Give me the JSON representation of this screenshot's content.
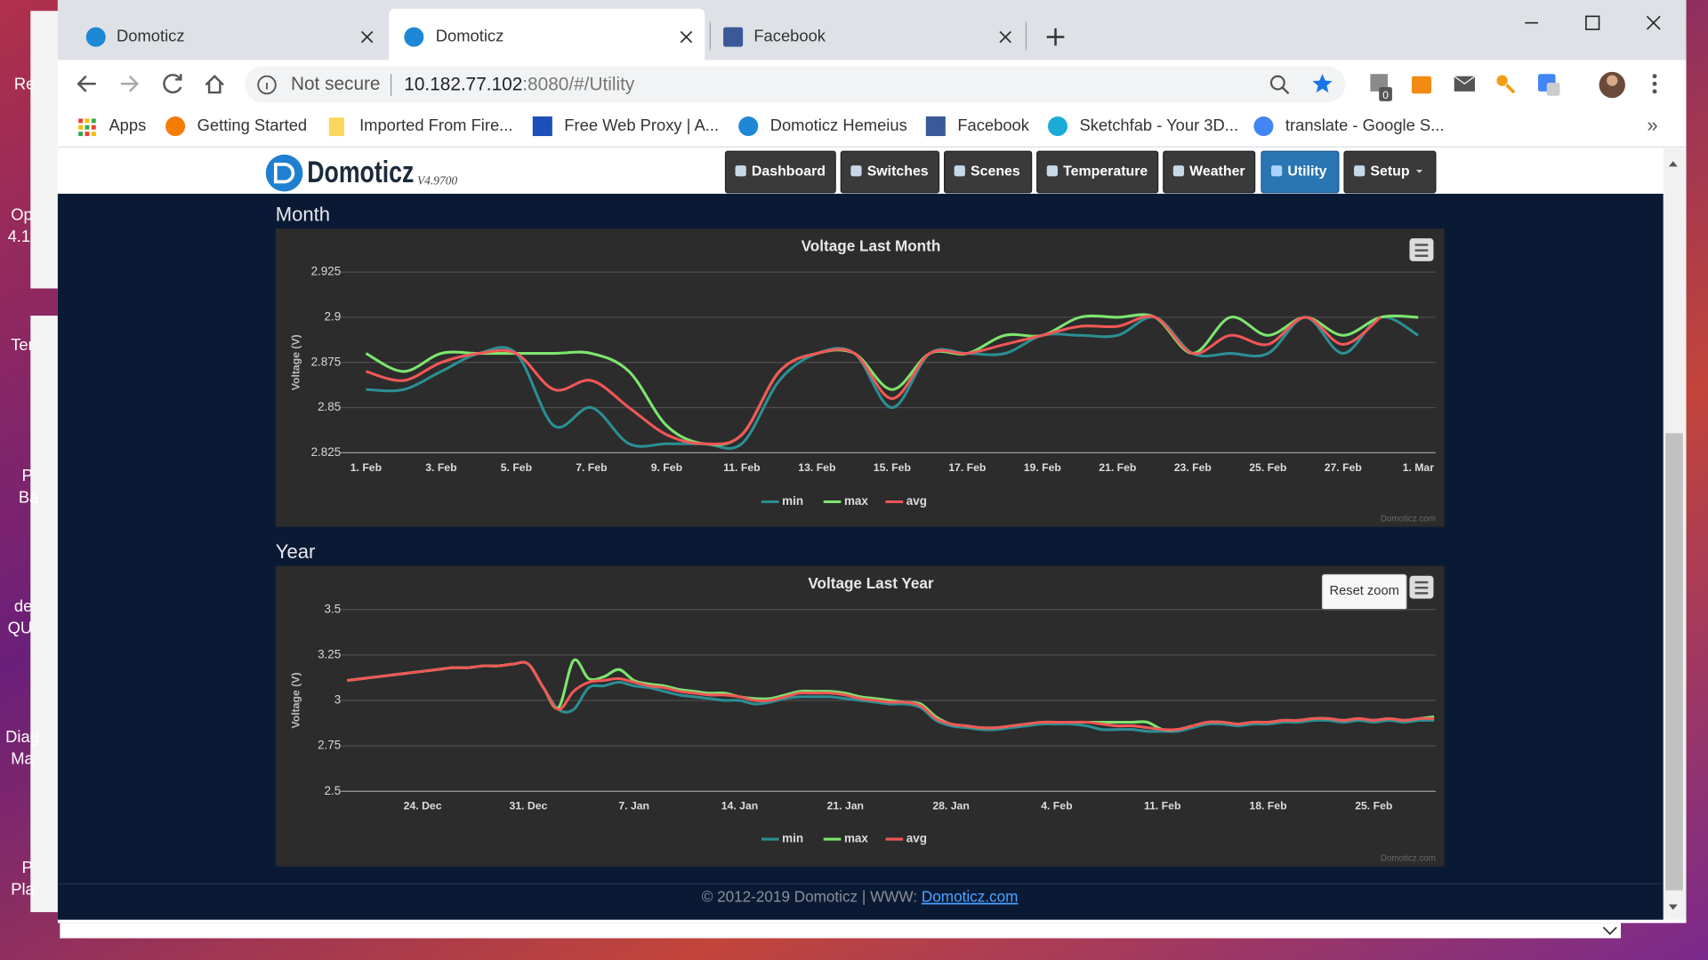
{
  "desktop": {
    "labels": [
      "Re",
      "Op",
      "4.1",
      "Ter",
      "P",
      "Ba",
      "de",
      "QU",
      "Diag",
      "Ma",
      "P",
      "Pla"
    ]
  },
  "browser": {
    "tabs": [
      "Domoticz",
      "Domoticz",
      "Facebook"
    ],
    "security": "Not secure",
    "url_host": "10.182.77.102",
    "url_rest": ":8080/#/Utility",
    "bookmarks": [
      "Apps",
      "Getting Started",
      "Imported From Fire...",
      "Free Web Proxy | A...",
      "Domoticz Hemeius",
      "Facebook",
      "Sketchfab - Your 3D...",
      "translate - Google S..."
    ],
    "bookmarks_more": "»",
    "extension_badge": "0"
  },
  "app": {
    "logo": "Domoticz",
    "version": "V4.9700",
    "nav": [
      "Dashboard",
      "Switches",
      "Scenes",
      "Temperature",
      "Weather",
      "Utility",
      "Setup"
    ],
    "footer": "© 2012-2019 Domoticz | WWW:",
    "footer_link": "Domoticz.com"
  },
  "chart_data": [
    {
      "type": "line",
      "section": "Month",
      "title": "Voltage Last Month",
      "y_label": "Voltage (V)",
      "credits": "Domoticz.com",
      "grid": true,
      "legend": "bottom",
      "categories": [
        "1. Feb",
        null,
        "3. Feb",
        null,
        "5. Feb",
        null,
        "7. Feb",
        null,
        "9. Feb",
        null,
        "11. Feb",
        null,
        "13. Feb",
        null,
        "15. Feb",
        null,
        "17. Feb",
        null,
        "19. Feb",
        null,
        "21. Feb",
        null,
        "23. Feb",
        null,
        "25. Feb",
        null,
        "27. Feb",
        null,
        "1. Mar"
      ],
      "ylim": [
        2.825,
        2.925
      ],
      "yticks": [
        2.825,
        2.85,
        2.875,
        2.9,
        2.925
      ],
      "series": [
        {
          "name": "min",
          "color": "#2b8f94",
          "values": [
            2.86,
            2.86,
            2.87,
            2.88,
            2.88,
            2.84,
            2.85,
            2.83,
            2.83,
            2.83,
            2.83,
            2.865,
            2.88,
            2.88,
            2.85,
            2.88,
            2.88,
            2.88,
            2.89,
            2.89,
            2.89,
            2.9,
            2.88,
            2.88,
            2.88,
            2.9,
            2.88,
            2.9,
            2.89
          ]
        },
        {
          "name": "max",
          "color": "#7ee56f",
          "values": [
            2.88,
            2.87,
            2.88,
            2.88,
            2.88,
            2.88,
            2.88,
            2.87,
            2.84,
            2.83,
            2.835,
            2.87,
            2.88,
            2.88,
            2.86,
            2.88,
            2.88,
            2.89,
            2.89,
            2.9,
            2.9,
            2.9,
            2.88,
            2.9,
            2.89,
            2.9,
            2.89,
            2.9,
            2.9
          ]
        },
        {
          "name": "avg",
          "color": "#f25757",
          "values": [
            2.87,
            2.865,
            2.875,
            2.88,
            2.88,
            2.86,
            2.865,
            2.85,
            2.835,
            2.83,
            2.835,
            2.87,
            2.88,
            2.88,
            2.855,
            2.88,
            2.88,
            2.885,
            2.89,
            2.895,
            2.895,
            2.9,
            2.88,
            2.89,
            2.885,
            2.9,
            2.885,
            2.9,
            null
          ]
        }
      ]
    },
    {
      "type": "line",
      "section": "Year",
      "title": "Voltage Last Year",
      "y_label": "Voltage (V)",
      "credits": "Domoticz.com",
      "reset_zoom": "Reset zoom",
      "grid": true,
      "legend": "bottom",
      "categories": [
        null,
        null,
        null,
        null,
        null,
        "24. Dec",
        null,
        null,
        null,
        null,
        null,
        null,
        "31. Dec",
        null,
        null,
        null,
        null,
        null,
        null,
        "7. Jan",
        null,
        null,
        null,
        null,
        null,
        null,
        "14. Jan",
        null,
        null,
        null,
        null,
        null,
        null,
        "21. Jan",
        null,
        null,
        null,
        null,
        null,
        null,
        "28. Jan",
        null,
        null,
        null,
        null,
        null,
        null,
        "4. Feb",
        null,
        null,
        null,
        null,
        null,
        null,
        "11. Feb",
        null,
        null,
        null,
        null,
        null,
        null,
        "18. Feb",
        null,
        null,
        null,
        null,
        null,
        null,
        "25. Feb",
        null,
        null,
        null,
        null
      ],
      "ylim": [
        2.5,
        3.5
      ],
      "yticks": [
        2.5,
        2.75,
        3,
        3.25,
        3.5
      ],
      "series": [
        {
          "name": "min",
          "color": "#2b8f94",
          "values": [
            3.11,
            3.12,
            3.13,
            3.14,
            3.15,
            3.16,
            3.17,
            3.18,
            3.18,
            3.19,
            3.19,
            3.2,
            3.2,
            3.07,
            2.95,
            2.95,
            3.07,
            3.08,
            3.1,
            3.08,
            3.07,
            3.05,
            3.03,
            3.02,
            3.01,
            3.0,
            3.0,
            2.98,
            2.99,
            3.01,
            3.02,
            3.02,
            3.02,
            3.01,
            3.0,
            2.99,
            2.98,
            2.98,
            2.96,
            2.89,
            2.86,
            2.85,
            2.84,
            2.84,
            2.85,
            2.86,
            2.87,
            2.87,
            2.87,
            2.86,
            2.84,
            2.84,
            2.84,
            2.83,
            2.83,
            2.83,
            2.85,
            2.87,
            2.87,
            2.86,
            2.87,
            2.87,
            2.88,
            2.88,
            2.89,
            2.89,
            2.88,
            2.89,
            2.88,
            2.89,
            2.88,
            2.89,
            2.89
          ]
        },
        {
          "name": "max",
          "color": "#7ee56f",
          "values": [
            3.11,
            3.12,
            3.13,
            3.14,
            3.15,
            3.16,
            3.17,
            3.18,
            3.18,
            3.19,
            3.19,
            3.2,
            3.2,
            3.07,
            2.96,
            3.22,
            3.12,
            3.13,
            3.17,
            3.11,
            3.09,
            3.08,
            3.06,
            3.05,
            3.04,
            3.04,
            3.02,
            3.01,
            3.01,
            3.03,
            3.05,
            3.05,
            3.05,
            3.04,
            3.02,
            3.01,
            3.0,
            2.99,
            2.98,
            2.91,
            2.87,
            2.86,
            2.85,
            2.85,
            2.86,
            2.87,
            2.88,
            2.88,
            2.88,
            2.88,
            2.88,
            2.88,
            2.88,
            2.88,
            2.84,
            2.84,
            2.86,
            2.88,
            2.88,
            2.87,
            2.88,
            2.88,
            2.89,
            2.89,
            2.9,
            2.9,
            2.89,
            2.9,
            2.89,
            2.9,
            2.89,
            2.9,
            2.91
          ]
        },
        {
          "name": "avg",
          "color": "#f25757",
          "values": [
            3.11,
            3.12,
            3.13,
            3.14,
            3.15,
            3.16,
            3.17,
            3.18,
            3.18,
            3.19,
            3.19,
            3.2,
            3.2,
            3.07,
            2.95,
            3.05,
            3.1,
            3.11,
            3.12,
            3.1,
            3.08,
            3.07,
            3.05,
            3.04,
            3.03,
            3.03,
            3.02,
            3.0,
            3.0,
            3.02,
            3.04,
            3.04,
            3.04,
            3.03,
            3.01,
            3.0,
            2.99,
            2.99,
            2.97,
            2.9,
            2.87,
            2.86,
            2.85,
            2.85,
            2.86,
            2.87,
            2.88,
            2.88,
            2.88,
            2.88,
            2.87,
            2.86,
            2.86,
            2.85,
            2.84,
            2.84,
            2.86,
            2.88,
            2.88,
            2.87,
            2.88,
            2.88,
            2.89,
            2.89,
            2.9,
            2.9,
            2.89,
            2.9,
            2.89,
            2.9,
            2.89,
            2.9,
            2.9
          ]
        }
      ]
    }
  ]
}
